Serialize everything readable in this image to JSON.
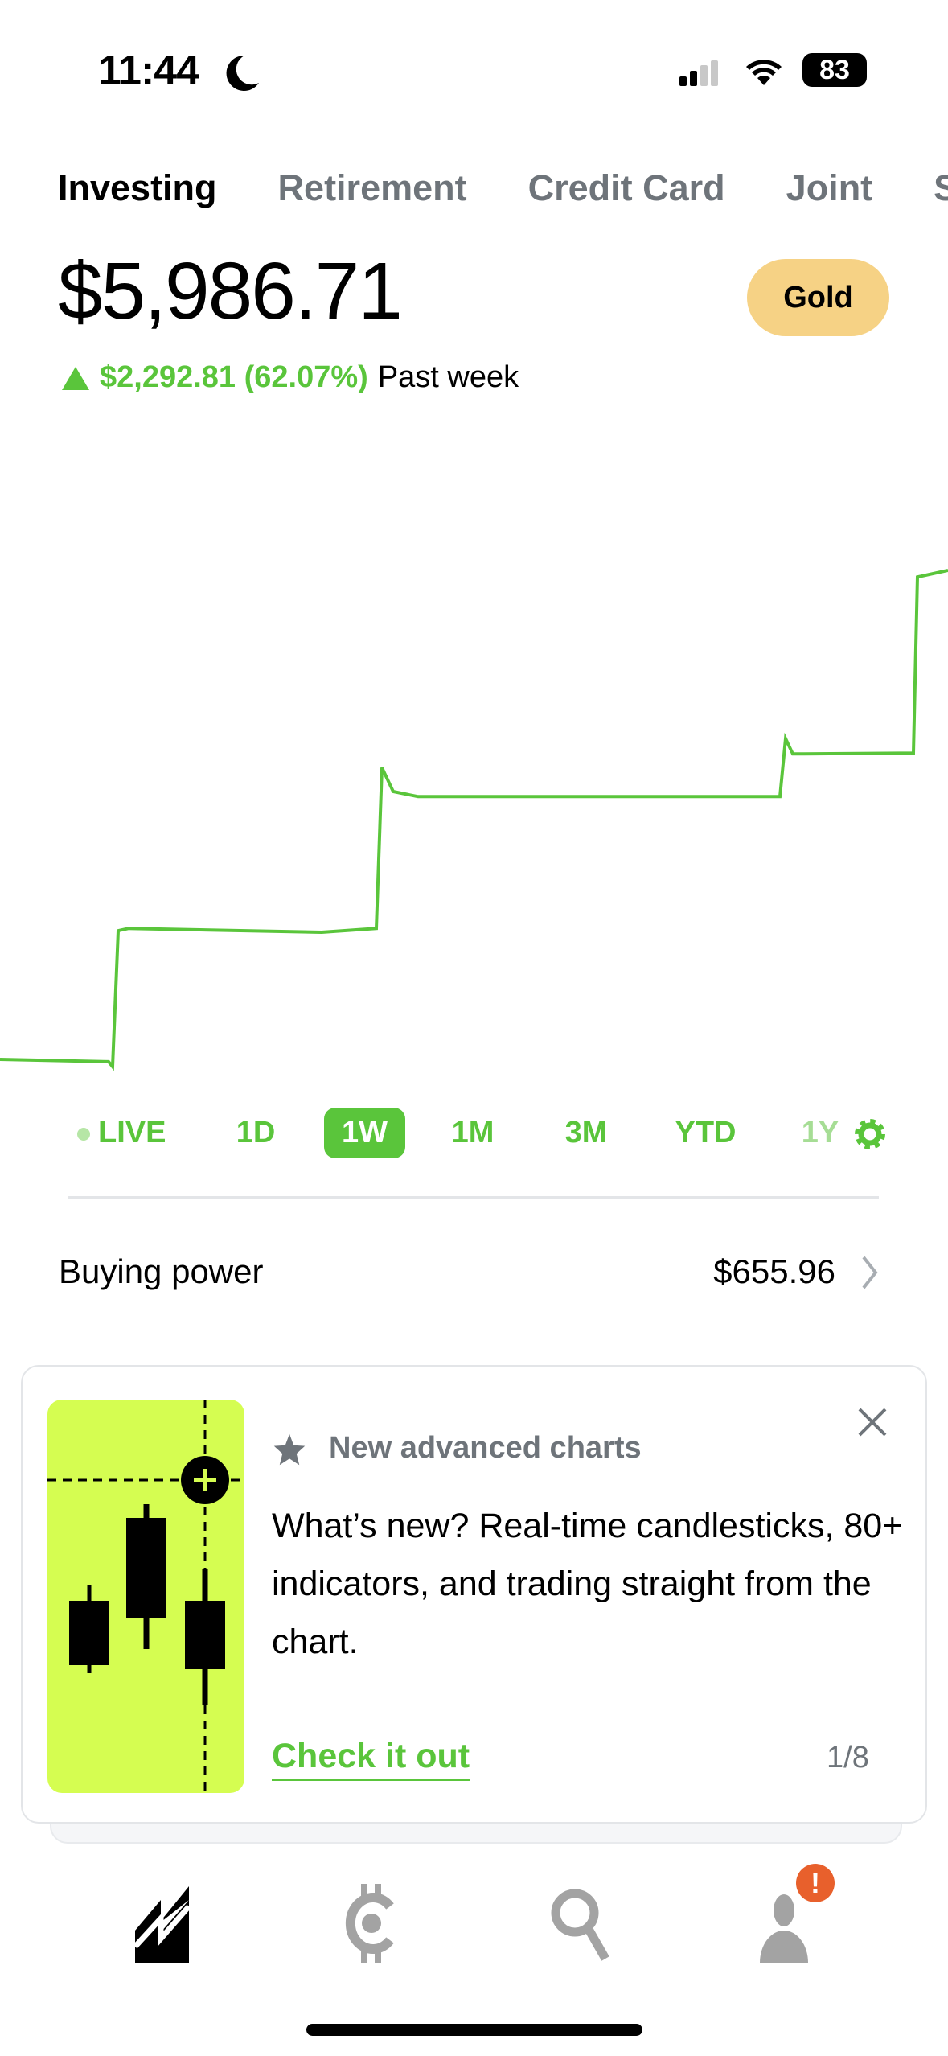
{
  "status_bar": {
    "time": "11:44",
    "battery": "83",
    "icons": [
      "moon-icon",
      "signal-icon",
      "wifi-icon",
      "battery-icon"
    ]
  },
  "tabs": [
    {
      "label": "Investing",
      "active": true
    },
    {
      "label": "Retirement"
    },
    {
      "label": "Credit Card"
    },
    {
      "label": "Joint"
    },
    {
      "label": "Str"
    }
  ],
  "portfolio": {
    "balance": "$5,986.71",
    "badge": "Gold",
    "change": "$2,292.81 (62.07%)",
    "period": "Past week",
    "accent": "#5ac53b"
  },
  "chart_data": {
    "type": "line",
    "color": "#5ac53b",
    "values": [
      3694,
      3683,
      3660,
      4297,
      4308,
      4290,
      4308,
      5062,
      4950,
      4926,
      4926,
      5198,
      5126,
      5126,
      5130,
      5956,
      5987
    ],
    "grid": false
  },
  "ranges": [
    "LIVE",
    "1D",
    "1W",
    "1M",
    "3M",
    "YTD",
    "1Y"
  ],
  "selected_range": "1W",
  "buying_power": {
    "label": "Buying power",
    "value": "$655.96"
  },
  "promo": {
    "title": "New advanced charts",
    "body": "What’s new? Real-time candlesticks, 80+ indicators, and trading straight from the chart.",
    "cta": "Check it out",
    "pager": "1/8",
    "image_bg": "#d5fd51"
  },
  "nav": {
    "items": [
      "investing-icon",
      "crypto-icon",
      "search-icon",
      "account-icon"
    ],
    "badge": "!",
    "badge_color": "#e8602c"
  }
}
